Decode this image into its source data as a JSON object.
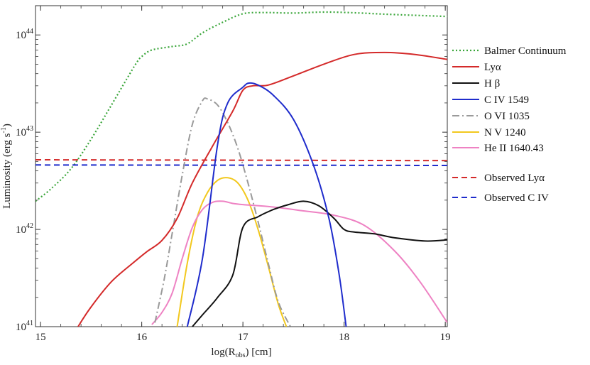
{
  "chart_data": {
    "type": "line",
    "xlabel": "log(R",
    "xlabel_sub": "obs",
    "xlabel_suffix": ") [cm]",
    "ylabel": "Luminosity (erg s",
    "ylabel_sup": "-1",
    "ylabel_suffix": ")",
    "x_scale": "linear",
    "y_scale": "log",
    "xlim": [
      14.95,
      19.02
    ],
    "ylim": [
      1e+41,
      2e+44
    ],
    "x_ticks": [
      {
        "value": 15,
        "label": "15"
      },
      {
        "value": 16,
        "label": "16"
      },
      {
        "value": 17,
        "label": "17"
      },
      {
        "value": 18,
        "label": "18"
      },
      {
        "value": 19,
        "label": "19"
      }
    ],
    "y_ticks": [
      {
        "value": 1e+41,
        "base": "10",
        "exp": "41"
      },
      {
        "value": 1e+42,
        "base": "10",
        "exp": "42"
      },
      {
        "value": 1e+43,
        "base": "10",
        "exp": "43"
      },
      {
        "value": 1e+44,
        "base": "10",
        "exp": "44"
      }
    ],
    "legend_position": "right",
    "series": [
      {
        "name": "Balmer Continuum",
        "color": "#3aa63a",
        "dash": "dotted",
        "x": [
          14.95,
          15.1,
          15.3,
          15.5,
          15.7,
          15.85,
          15.95,
          16.0,
          16.1,
          16.3,
          16.45,
          16.6,
          16.8,
          17.0,
          17.2,
          17.5,
          17.8,
          18.1,
          18.5,
          19.02
        ],
        "y": [
          1.95e+42,
          2.6e+42,
          4.2e+42,
          8.5e+42,
          1.9e+43,
          3.5e+43,
          5.2e+43,
          6e+43,
          7e+43,
          7.6e+43,
          8.1e+43,
          1.05e+44,
          1.35e+44,
          1.65e+44,
          1.7e+44,
          1.68e+44,
          1.72e+44,
          1.69e+44,
          1.62e+44,
          1.55e+44
        ]
      },
      {
        "name": "Lyα",
        "color": "#d42a2a",
        "dash": "solid",
        "x": [
          15.37,
          15.5,
          15.7,
          15.9,
          16.05,
          16.2,
          16.35,
          16.5,
          16.7,
          16.9,
          17.0,
          17.1,
          17.25,
          17.5,
          17.8,
          18.1,
          18.4,
          18.7,
          19.02
        ],
        "y": [
          1e+41,
          1.6e+41,
          2.9e+41,
          4.4e+41,
          5.9e+41,
          7.7e+41,
          1.3e+42,
          3e+42,
          7.2e+42,
          1.65e+43,
          2.7e+43,
          3e+43,
          3.05e+43,
          3.8e+43,
          5e+43,
          6.3e+43,
          6.6e+43,
          6.3e+43,
          5.6e+43
        ]
      },
      {
        "name": "H β",
        "color": "#111111",
        "dash": "solid",
        "x": [
          16.5,
          16.6,
          16.75,
          16.9,
          17.0,
          17.15,
          17.3,
          17.45,
          17.6,
          17.75,
          17.9,
          18.0,
          18.1,
          18.3,
          18.5,
          18.8,
          19.02
        ],
        "y": [
          1e+41,
          1.32e+41,
          2e+41,
          3.4e+41,
          1.05e+42,
          1.35e+42,
          1.6e+42,
          1.8e+42,
          1.95e+42,
          1.75e+42,
          1.3e+42,
          1e+42,
          9.4e+41,
          9e+41,
          8.2e+41,
          7.6e+41,
          7.8e+41
        ]
      },
      {
        "name": "C IV 1549",
        "color": "#1f2ccc",
        "dash": "solid",
        "x": [
          16.45,
          16.6,
          16.75,
          16.85,
          17.0,
          17.06,
          17.15,
          17.3,
          17.5,
          17.7,
          17.85,
          17.95,
          18.02
        ],
        "y": [
          1e+41,
          5e+41,
          7.5e+42,
          2e+43,
          2.9e+43,
          3.2e+43,
          3.05e+43,
          2.4e+43,
          1.35e+43,
          4.5e+42,
          1.3e+42,
          3.5e+41,
          1e+41
        ]
      },
      {
        "name": "O VI 1035",
        "color": "#9a9a9a",
        "dash": "dashdot",
        "x": [
          16.13,
          16.22,
          16.3,
          16.4,
          16.5,
          16.6,
          16.65,
          16.75,
          16.85,
          16.95,
          17.05,
          17.15,
          17.25,
          17.35,
          17.47
        ],
        "y": [
          1.1e+41,
          3e+41,
          9e+41,
          3.6e+42,
          1.2e+43,
          2.1e+43,
          2.2e+43,
          1.9e+43,
          1.25e+43,
          6.8e+42,
          3e+42,
          1.2e+42,
          4.5e+41,
          1.8e+41,
          1e+41
        ]
      },
      {
        "name": "N V 1240",
        "color": "#f2c81e",
        "dash": "solid",
        "x": [
          16.35,
          16.45,
          16.55,
          16.65,
          16.75,
          16.85,
          16.95,
          17.05,
          17.15,
          17.25,
          17.35,
          17.43
        ],
        "y": [
          1e+41,
          4.5e+41,
          1.35e+42,
          2.4e+42,
          3.2e+42,
          3.4e+42,
          3e+42,
          2e+42,
          1e+42,
          4.2e+41,
          1.7e+41,
          1e+41
        ]
      },
      {
        "name": "He II 1640.43",
        "color": "#ee82c3",
        "dash": "solid",
        "x": [
          16.1,
          16.2,
          16.3,
          16.4,
          16.5,
          16.6,
          16.7,
          16.8,
          16.9,
          17.0,
          17.3,
          17.6,
          17.9,
          18.2,
          18.5,
          18.75,
          19.02
        ],
        "y": [
          1.05e+41,
          1.4e+41,
          2.2e+41,
          5e+41,
          1.05e+42,
          1.6e+42,
          1.9e+42,
          1.95e+42,
          1.85e+42,
          1.8e+42,
          1.7e+42,
          1.55e+42,
          1.4e+42,
          1.1e+42,
          6e+41,
          2.9e+41,
          1.1e+41
        ]
      },
      {
        "name": "Observed Lyα",
        "color": "#d42a2a",
        "dash": "dashed",
        "legend_color_text": true,
        "x": [
          14.95,
          19.02
        ],
        "y": [
          5.2e+42,
          5.1e+42
        ]
      },
      {
        "name": "Observed C IV",
        "color": "#1f2ccc",
        "dash": "dashed",
        "legend_color_text": true,
        "x": [
          14.95,
          19.02
        ],
        "y": [
          4.6e+42,
          4.55e+42
        ]
      }
    ]
  }
}
